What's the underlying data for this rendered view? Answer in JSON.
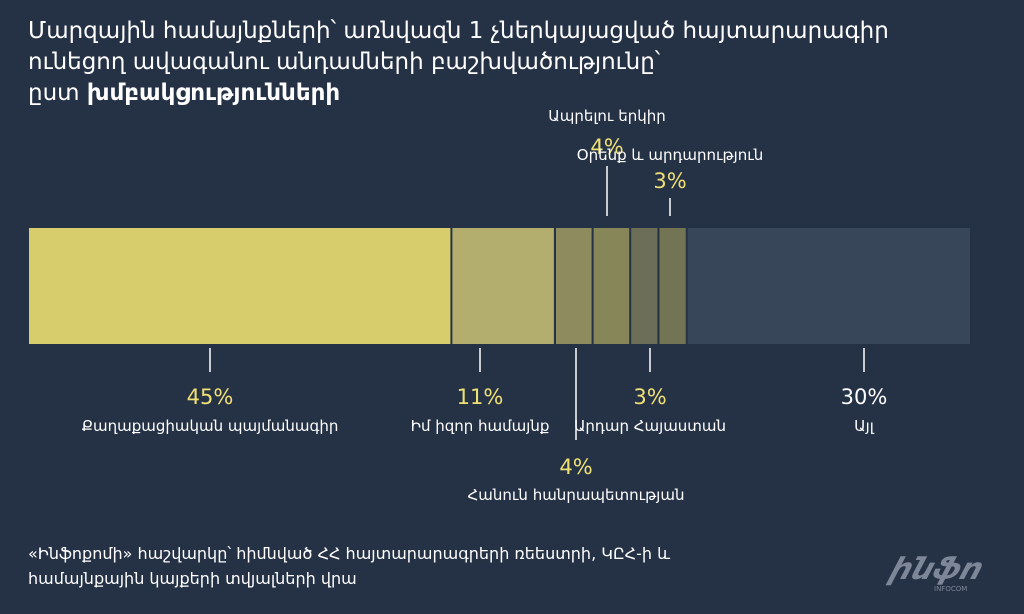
{
  "title": {
    "line1": "Մարզային համայնքների՝ առնվազն 1 չներկայացված հայտարարագիր",
    "line2": "ունեցող ավագանու անդամների բաշխվածությունը՝",
    "line3_prefix": "ըստ ",
    "line3_bold": "խմբակցությունների"
  },
  "colors": {
    "background": "#253246",
    "highlight_text": "#f0e074",
    "other_text": "#ffffff",
    "segment_fills": [
      "#d7cd6c",
      "#b3ad6e",
      "#8e8c5f",
      "#878658",
      "#6d6e57",
      "#737454",
      "#38465a"
    ]
  },
  "chart_data": {
    "type": "bar",
    "orientation": "horizontal-stacked",
    "unit": "%",
    "segments": [
      {
        "label": "Քաղաքացիական պայմանագիր",
        "value": 45,
        "value_label": "45%"
      },
      {
        "label": "Իմ իզոր համայնք",
        "value": 11,
        "value_label": "11%"
      },
      {
        "label": "Հանուն հանրապետության",
        "value": 4,
        "value_label": "4%"
      },
      {
        "label": "Ապրելու երկիր",
        "value": 4,
        "value_label": "4%"
      },
      {
        "label": "Արդար Հայաստան",
        "value": 3,
        "value_label": "3%"
      },
      {
        "label": "Օրենք և արդարություն",
        "value": 3,
        "value_label": "3%"
      },
      {
        "label": "Այլ",
        "value": 30,
        "value_label": "30%"
      }
    ],
    "legend": "none",
    "grid": false
  },
  "footer": {
    "line1": "«Ինֆոքոմի» հաշվարկը՝ հիմնված ՀՀ հայտարարագրերի ռեեստրի, ԿԸՀ-ի և",
    "line2": "համայնքային կայքերի տվյալների վրա"
  },
  "logo": {
    "mark": "ինֆո",
    "wordmark": "INFOCOM"
  }
}
